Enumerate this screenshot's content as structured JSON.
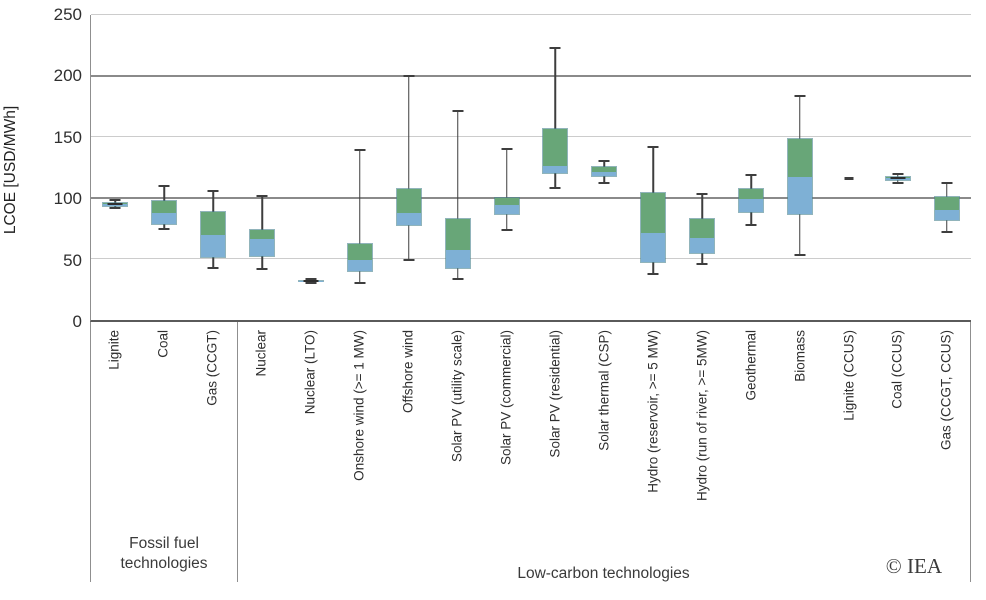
{
  "y_axis": {
    "title": "LCOE [USD/MWh]",
    "ticks": [
      0,
      50,
      100,
      150,
      200,
      250
    ],
    "max": 250
  },
  "groups": {
    "fossil": "Fossil fuel technologies",
    "low_carbon": "Low-carbon technologies"
  },
  "copyright": "© IEA",
  "chart_data": {
    "type": "boxplot",
    "title": "",
    "xlabel": "",
    "ylabel": "LCOE [USD/MWh]",
    "ylim": [
      0,
      250
    ],
    "grid": "horizontal",
    "categories": [
      "Lignite",
      "Coal",
      "Gas (CCGT)",
      "Nuclear",
      "Nuclear (LTO)",
      "Onshore wind (>= 1 MW)",
      "Offshore wind",
      "Solar PV (utility scale)",
      "Solar PV (commercial)",
      "Solar PV (residential)",
      "Solar thermal (CSP)",
      "Hydro (reservoir, >= 5 MW)",
      "Hydro (run of river, >= 5MW)",
      "Geothermal",
      "Biomass",
      "Lignite (CCUS)",
      "Coal (CCUS)",
      "Gas (CCGT, CCUS)"
    ],
    "series": [
      {
        "label": "Lignite",
        "min": 92,
        "q1": 93,
        "median": 95,
        "q3": 97,
        "max": 98
      },
      {
        "label": "Coal",
        "min": 75,
        "q1": 78,
        "median": 88,
        "q3": 98,
        "max": 110
      },
      {
        "label": "Gas (CCGT)",
        "min": 43,
        "q1": 51,
        "median": 70,
        "q3": 89,
        "max": 106
      },
      {
        "label": "Nuclear",
        "min": 42,
        "q1": 52,
        "median": 67,
        "q3": 75,
        "max": 102
      },
      {
        "label": "Nuclear (LTO)",
        "min": 30,
        "q1": 31,
        "median": 32,
        "q3": 33,
        "max": 34
      },
      {
        "label": "Onshore wind (>= 1 MW)",
        "min": 30,
        "q1": 39,
        "median": 49,
        "q3": 63,
        "max": 139
      },
      {
        "label": "Offshore wind",
        "min": 49,
        "q1": 77,
        "median": 87,
        "q3": 108,
        "max": 200
      },
      {
        "label": "Solar PV (utility scale)",
        "min": 34,
        "q1": 42,
        "median": 57,
        "q3": 84,
        "max": 171
      },
      {
        "label": "Solar PV (commercial)",
        "min": 74,
        "q1": 86,
        "median": 94,
        "q3": 101,
        "max": 140
      },
      {
        "label": "Solar PV (residential)",
        "min": 108,
        "q1": 120,
        "median": 126,
        "q3": 157,
        "max": 223
      },
      {
        "label": "Solar thermal (CSP)",
        "min": 112,
        "q1": 117,
        "median": 121,
        "q3": 126,
        "max": 130
      },
      {
        "label": "Hydro (reservoir, >= 5 MW)",
        "min": 38,
        "q1": 47,
        "median": 71,
        "q3": 105,
        "max": 142
      },
      {
        "label": "Hydro (run of river, >= 5MW)",
        "min": 46,
        "q1": 54,
        "median": 67,
        "q3": 84,
        "max": 103
      },
      {
        "label": "Geothermal",
        "min": 78,
        "q1": 88,
        "median": 99,
        "q3": 108,
        "max": 119
      },
      {
        "label": "Biomass",
        "min": 53,
        "q1": 86,
        "median": 117,
        "q3": 149,
        "max": 184
      },
      {
        "label": "Lignite (CCUS)",
        "value": 116
      },
      {
        "label": "Coal (CCUS)",
        "min": 112,
        "q1": 114,
        "median": 116,
        "q3": 118,
        "max": 120
      },
      {
        "label": "Gas (CCGT, CCUS)",
        "min": 72,
        "q1": 81,
        "median": 90,
        "q3": 102,
        "max": 112
      }
    ],
    "group_spans": [
      {
        "label": "Fossil fuel technologies",
        "from": 0,
        "to": 2
      },
      {
        "label": "Low-carbon technologies",
        "from": 3,
        "to": 17
      }
    ],
    "colors": {
      "box_upper_green": "#68a678",
      "box_lower_blue": "#7eb0d5",
      "box_border": "#48828e",
      "whisker": "#3e3e3e",
      "grid_light": "#cccccc",
      "grid_dark": "#8a8a8a"
    }
  }
}
